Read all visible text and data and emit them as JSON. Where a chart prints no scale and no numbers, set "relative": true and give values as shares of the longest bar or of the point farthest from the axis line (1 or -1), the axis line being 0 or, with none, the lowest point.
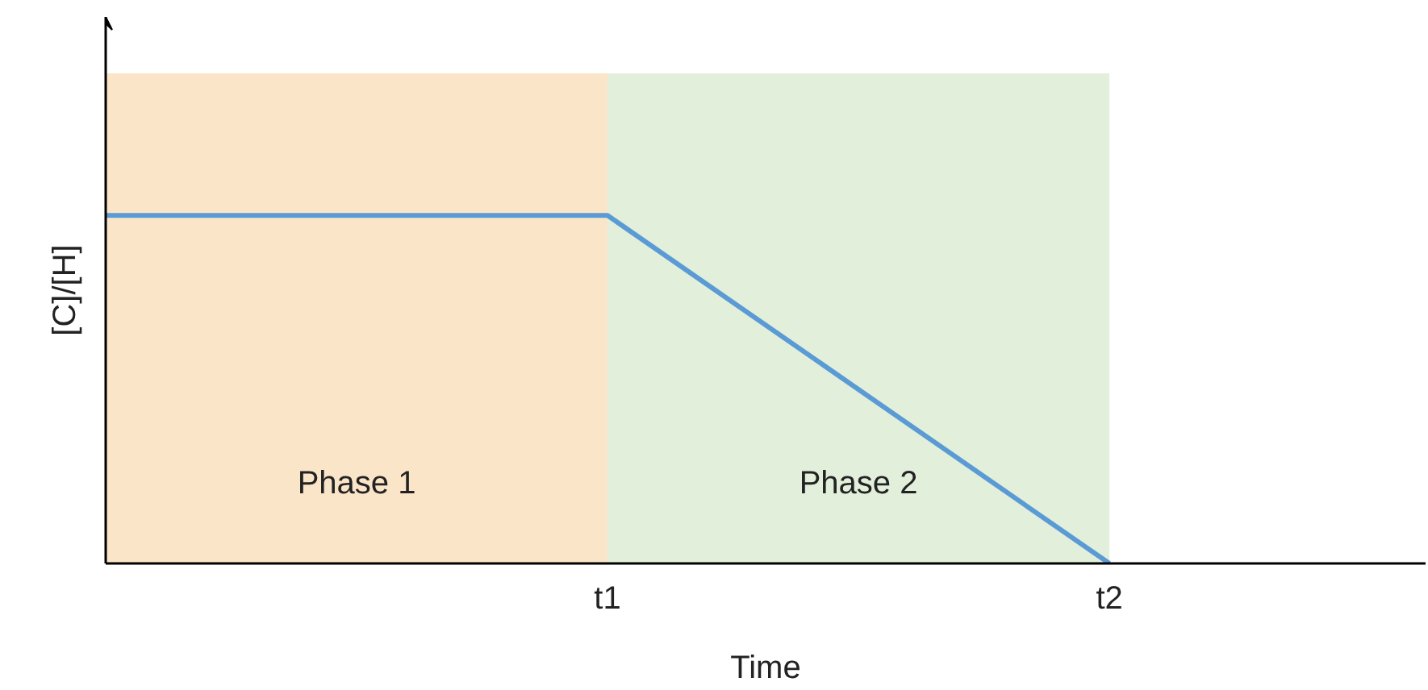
{
  "chart_data": {
    "type": "line",
    "xlabel": "Time",
    "ylabel": "[C]/[H]",
    "categories": [
      null,
      "t1",
      "t2"
    ],
    "relative": true,
    "series": [
      {
        "type": "area",
        "name": "Phase 1",
        "color": "#fbe5c8",
        "values": [
          1,
          1,
          null
        ]
      },
      {
        "type": "area",
        "name": "Phase 2",
        "color": "#e2efda",
        "values": [
          null,
          1,
          1
        ]
      },
      {
        "color": "#5b9bd5",
        "values": [
          0.71,
          0.71,
          0
        ]
      }
    ],
    "tick_labels": "x",
    "grid": false,
    "marker": "none",
    "line_style": "solid"
  }
}
